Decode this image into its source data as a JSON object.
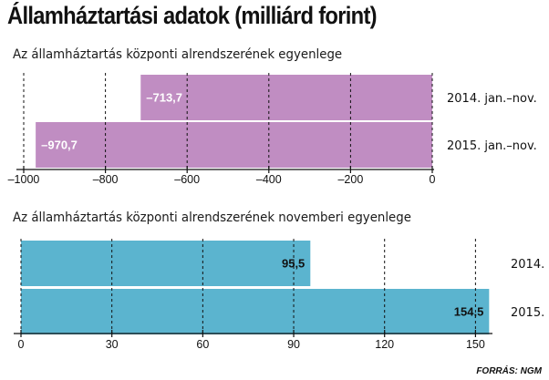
{
  "header": {
    "title": "Államháztartási adatok (milliárd forint)"
  },
  "footer": {
    "source": "FORRÁS: NGM"
  },
  "colors": {
    "chart1_bar": "#c08dc2",
    "chart2_bar": "#5bb4cf"
  },
  "chart_data": [
    {
      "type": "bar",
      "orientation": "horizontal",
      "title": "Az államháztartás központi alrendszerének egyenlege",
      "categories": [
        "2014. jan.–nov.",
        "2015. jan.–nov."
      ],
      "values": [
        -713.7,
        -970.7
      ],
      "value_labels": [
        "–713,7",
        "–970,7"
      ],
      "xlim": [
        -1000,
        0
      ],
      "xticks": [
        -1000,
        -800,
        -600,
        -400,
        -200,
        0
      ],
      "xtick_labels": [
        "–1000",
        "–800",
        "–600",
        "–400",
        "–200",
        "0"
      ],
      "grid": true
    },
    {
      "type": "bar",
      "orientation": "horizontal",
      "title": "Az államháztartás központi alrendszerének novemberi  egyenlege",
      "categories": [
        "2014.",
        "2015."
      ],
      "values": [
        95.5,
        154.5
      ],
      "value_labels": [
        "95,5",
        "154,5"
      ],
      "xlim": [
        0,
        155
      ],
      "xticks": [
        0,
        30,
        60,
        90,
        120,
        150
      ],
      "xtick_labels": [
        "0",
        "30",
        "60",
        "90",
        "120",
        "150"
      ],
      "grid": true
    }
  ]
}
